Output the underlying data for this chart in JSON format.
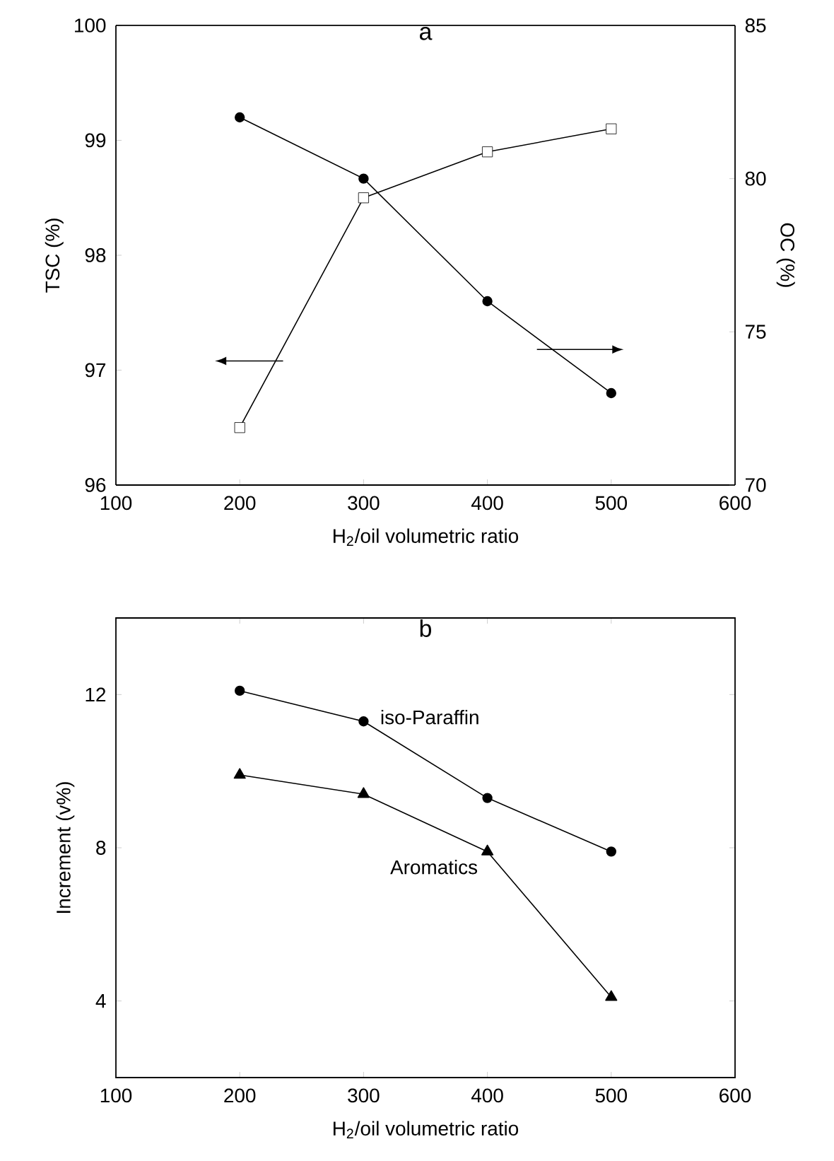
{
  "chart_data": [
    {
      "type": "line",
      "title": "a",
      "xlabel": "H$_{2}$/oil volumetric ratio",
      "ylabel": "TSC (%)",
      "y2label": "OC (%)",
      "x": [
        200,
        300,
        400,
        500
      ],
      "series": [
        {
          "values": [
            96.5,
            98.5,
            98.9,
            99.1
          ],
          "color": "#000000",
          "marker": "square"
        },
        {
          "values": [
            82.0,
            80.0,
            76.0,
            73.0
          ],
          "color": "#000000",
          "marker": "circle",
          "axis": "y2"
        }
      ],
      "xlim": [
        100,
        600
      ],
      "xticks": [
        100,
        200,
        300,
        400,
        500,
        600
      ],
      "ylim": [
        96,
        100
      ],
      "yticks": [
        96,
        97,
        98,
        99,
        100
      ],
      "y2lim": [
        70,
        85
      ],
      "y2ticks": [
        70,
        75,
        80,
        85
      ],
      "grid": false,
      "line_style": "solid"
    },
    {
      "type": "line",
      "title": "b",
      "xlabel": "H$_{2}$/oil volumetric ratio",
      "ylabel": "Increment (v%)",
      "x": [
        200,
        300,
        400,
        500
      ],
      "series": [
        {
          "name": "iso-Paraffin",
          "values": [
            12.1,
            11.3,
            9.3,
            7.9
          ],
          "color": "#000000",
          "marker": "circle"
        },
        {
          "name": "Aromatics",
          "values": [
            9.9,
            9.4,
            7.9,
            4.1
          ],
          "color": "#000000",
          "marker": "triangle"
        }
      ],
      "xlim": [
        100,
        600
      ],
      "xticks": [
        100,
        200,
        300,
        400,
        500,
        600
      ],
      "ylim": [
        2,
        14
      ],
      "yticks": [
        4,
        8,
        12
      ],
      "grid": false,
      "line_style": "solid"
    }
  ]
}
